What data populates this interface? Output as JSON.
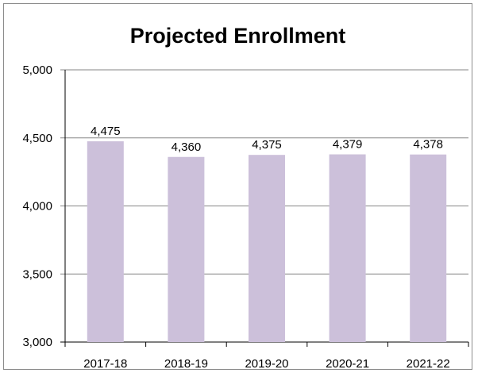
{
  "chart_data": {
    "type": "bar",
    "title": "Projected Enrollment",
    "categories": [
      "2017-18",
      "2018-19",
      "2019-20",
      "2020-21",
      "2021-22"
    ],
    "values": [
      4475,
      4360,
      4375,
      4379,
      4378
    ],
    "data_labels": [
      "4,475",
      "4,360",
      "4,375",
      "4,379",
      "4,378"
    ],
    "yticks": [
      "3,000",
      "3,500",
      "4,000",
      "4,500",
      "5,000"
    ],
    "ylim": [
      3000,
      5000
    ],
    "grid": true,
    "legend": "none",
    "bar_color": "#ccc0da",
    "gridline_color": "#868686"
  }
}
